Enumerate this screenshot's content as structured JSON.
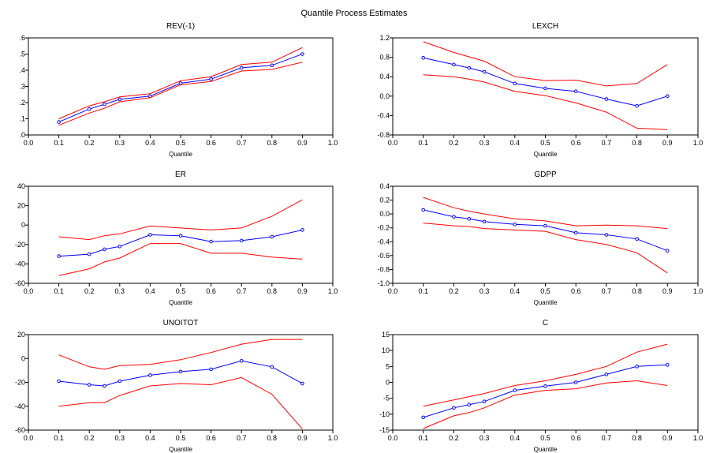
{
  "figure_title": "Quantile Process Estimates",
  "colors": {
    "estimate": "#0000ff",
    "bounds": "#ff0000",
    "frame": "#000000"
  },
  "chart_data": [
    {
      "type": "line",
      "title": "REV(-1)",
      "xlabel": "Quantile",
      "ylabel": "",
      "xlim": [
        0.0,
        1.0
      ],
      "ylim": [
        0.0,
        0.6
      ],
      "xticks": [
        "0.0",
        "0.1",
        "0.2",
        "0.3",
        "0.4",
        "0.5",
        "0.6",
        "0.7",
        "0.8",
        "0.9",
        "1.0"
      ],
      "yticks": [
        ".0",
        ".1",
        ".2",
        ".3",
        ".4",
        ".5",
        ".6"
      ],
      "x": [
        0.1,
        0.2,
        0.25,
        0.3,
        0.4,
        0.5,
        0.6,
        0.7,
        0.8,
        0.9
      ],
      "series": [
        {
          "role": "estimate",
          "values": [
            0.08,
            0.16,
            0.19,
            0.22,
            0.24,
            0.32,
            0.345,
            0.415,
            0.43,
            0.5
          ]
        },
        {
          "role": "upper",
          "values": [
            0.1,
            0.18,
            0.205,
            0.235,
            0.255,
            0.335,
            0.36,
            0.435,
            0.45,
            0.54
          ]
        },
        {
          "role": "lower",
          "values": [
            0.06,
            0.135,
            0.165,
            0.205,
            0.23,
            0.31,
            0.33,
            0.395,
            0.405,
            0.45
          ]
        }
      ],
      "grid": false
    },
    {
      "type": "line",
      "title": "LEXCH",
      "xlabel": "Quantile",
      "ylabel": "",
      "xlim": [
        0.0,
        1.0
      ],
      "ylim": [
        -0.8,
        1.2
      ],
      "xticks": [
        "0.0",
        "0.1",
        "0.2",
        "0.3",
        "0.4",
        "0.5",
        "0.6",
        "0.7",
        "0.8",
        "0.9",
        "1.0"
      ],
      "yticks": [
        "-0.8",
        "-0.4",
        "0.0",
        "0.4",
        "0.8",
        "1.2"
      ],
      "x": [
        0.1,
        0.2,
        0.25,
        0.3,
        0.4,
        0.5,
        0.6,
        0.7,
        0.8,
        0.9
      ],
      "series": [
        {
          "role": "estimate",
          "values": [
            0.79,
            0.65,
            0.58,
            0.5,
            0.26,
            0.16,
            0.1,
            -0.06,
            -0.2,
            0.0
          ]
        },
        {
          "role": "upper",
          "values": [
            1.12,
            0.9,
            0.81,
            0.72,
            0.4,
            0.32,
            0.33,
            0.21,
            0.26,
            0.65
          ]
        },
        {
          "role": "lower",
          "values": [
            0.44,
            0.4,
            0.35,
            0.29,
            0.1,
            0.01,
            -0.14,
            -0.33,
            -0.66,
            -0.69
          ]
        }
      ],
      "grid": false
    },
    {
      "type": "line",
      "title": "ER",
      "xlabel": "Quantile",
      "ylabel": "",
      "xlim": [
        0.0,
        1.0
      ],
      "ylim": [
        -60,
        40
      ],
      "xticks": [
        "0.0",
        "0.1",
        "0.2",
        "0.3",
        "0.4",
        "0.5",
        "0.6",
        "0.7",
        "0.8",
        "0.9",
        "1.0"
      ],
      "yticks": [
        "-60",
        "-40",
        "-20",
        "0",
        "20",
        "40"
      ],
      "x": [
        0.1,
        0.2,
        0.25,
        0.3,
        0.4,
        0.5,
        0.6,
        0.7,
        0.8,
        0.9
      ],
      "series": [
        {
          "role": "estimate",
          "values": [
            -32,
            -30,
            -25,
            -22,
            -10,
            -11,
            -17,
            -16,
            -12,
            -5
          ]
        },
        {
          "role": "upper",
          "values": [
            -12,
            -15,
            -11,
            -9,
            -1,
            -3,
            -5,
            -3,
            9,
            26
          ]
        },
        {
          "role": "lower",
          "values": [
            -52,
            -45,
            -38,
            -34,
            -19,
            -19,
            -29,
            -29,
            -33,
            -35
          ]
        }
      ],
      "grid": false
    },
    {
      "type": "line",
      "title": "GDPP",
      "xlabel": "Quantile",
      "ylabel": "",
      "xlim": [
        0.0,
        1.0
      ],
      "ylim": [
        -1.0,
        0.4
      ],
      "xticks": [
        "0.0",
        "0.1",
        "0.2",
        "0.3",
        "0.4",
        "0.5",
        "0.6",
        "0.7",
        "0.8",
        "0.9",
        "1.0"
      ],
      "yticks": [
        "-1.0",
        "-0.8",
        "-0.6",
        "-0.4",
        "-0.2",
        "0.0",
        "0.2",
        "0.4"
      ],
      "x": [
        0.1,
        0.2,
        0.25,
        0.3,
        0.4,
        0.5,
        0.6,
        0.7,
        0.8,
        0.9
      ],
      "series": [
        {
          "role": "estimate",
          "values": [
            0.06,
            -0.04,
            -0.07,
            -0.11,
            -0.15,
            -0.17,
            -0.27,
            -0.3,
            -0.36,
            -0.53
          ]
        },
        {
          "role": "upper",
          "values": [
            0.24,
            0.09,
            0.04,
            0.0,
            -0.07,
            -0.1,
            -0.17,
            -0.16,
            -0.17,
            -0.21
          ]
        },
        {
          "role": "lower",
          "values": [
            -0.13,
            -0.17,
            -0.18,
            -0.21,
            -0.23,
            -0.25,
            -0.37,
            -0.44,
            -0.56,
            -0.85
          ]
        }
      ],
      "grid": false
    },
    {
      "type": "line",
      "title": "UNOITOT",
      "xlabel": "Quantile",
      "ylabel": "",
      "xlim": [
        0.0,
        1.0
      ],
      "ylim": [
        -60,
        20
      ],
      "xticks": [
        "0.0",
        "0.1",
        "0.2",
        "0.3",
        "0.4",
        "0.5",
        "0.6",
        "0.7",
        "0.8",
        "0.9",
        "1.0"
      ],
      "yticks": [
        "-60",
        "-40",
        "-20",
        "0",
        "20"
      ],
      "x": [
        0.1,
        0.2,
        0.25,
        0.3,
        0.4,
        0.5,
        0.6,
        0.7,
        0.8,
        0.9
      ],
      "series": [
        {
          "role": "estimate",
          "values": [
            -19,
            -22,
            -23,
            -19,
            -14,
            -11,
            -9,
            -2,
            -7,
            -21
          ]
        },
        {
          "role": "upper",
          "values": [
            3,
            -7,
            -9,
            -6,
            -5,
            -1,
            5,
            12,
            16,
            16
          ]
        },
        {
          "role": "lower",
          "values": [
            -40,
            -37,
            -37,
            -31,
            -23,
            -21,
            -22,
            -16,
            -30,
            -59
          ]
        }
      ],
      "grid": false
    },
    {
      "type": "line",
      "title": "C",
      "xlabel": "Quantile",
      "ylabel": "",
      "xlim": [
        0.0,
        1.0
      ],
      "ylim": [
        -15,
        15
      ],
      "xticks": [
        "0.0",
        "0.1",
        "0.2",
        "0.3",
        "0.4",
        "0.5",
        "0.6",
        "0.7",
        "0.8",
        "0.9",
        "1.0"
      ],
      "yticks": [
        "-15",
        "-10",
        "-5",
        "0",
        "5",
        "10",
        "15"
      ],
      "x": [
        0.1,
        0.2,
        0.25,
        0.3,
        0.4,
        0.5,
        0.6,
        0.7,
        0.8,
        0.9
      ],
      "series": [
        {
          "role": "estimate",
          "values": [
            -11,
            -8,
            -7,
            -6,
            -2.5,
            -1.2,
            0,
            2.5,
            5,
            5.5
          ]
        },
        {
          "role": "upper",
          "values": [
            -7.5,
            -5.5,
            -4.5,
            -3.5,
            -1,
            0.5,
            2.5,
            5,
            9.5,
            12
          ]
        },
        {
          "role": "lower",
          "values": [
            -14.5,
            -10.5,
            -9.5,
            -8,
            -4,
            -2.5,
            -2,
            -0.2,
            0.5,
            -1
          ]
        }
      ],
      "grid": false
    }
  ]
}
